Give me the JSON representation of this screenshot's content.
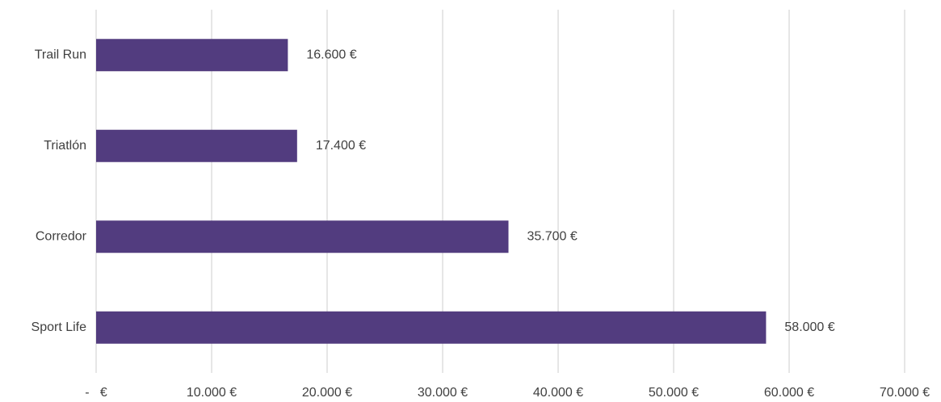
{
  "chart_data": {
    "type": "bar",
    "orientation": "horizontal",
    "categories": [
      "Trail Run",
      "Triatlón",
      "Corredor",
      "Sport Life"
    ],
    "values": [
      16600,
      17400,
      35700,
      58000
    ],
    "value_labels": [
      "16.600 €",
      "17.400 €",
      "35.700 €",
      "58.000 €"
    ],
    "color": "#523c7f",
    "xlim": [
      0,
      70000
    ],
    "xticks": [
      {
        "value": 0,
        "label": "-   €"
      },
      {
        "value": 10000,
        "label": "10.000 €"
      },
      {
        "value": 20000,
        "label": "20.000 €"
      },
      {
        "value": 30000,
        "label": "30.000 €"
      },
      {
        "value": 40000,
        "label": "40.000 €"
      },
      {
        "value": 50000,
        "label": "50.000 €"
      },
      {
        "value": 60000,
        "label": "60.000 €"
      },
      {
        "value": 70000,
        "label": "70.000 €"
      }
    ],
    "grid": true
  }
}
